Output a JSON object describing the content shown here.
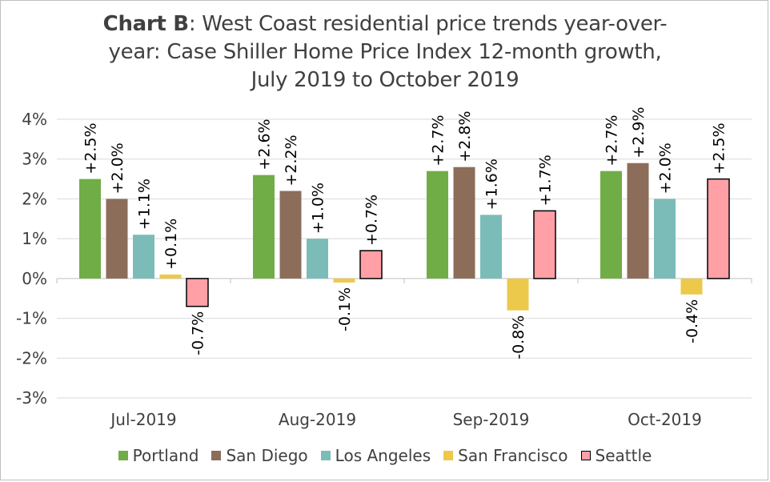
{
  "title": {
    "bold": "Chart B",
    "rest_line1": ": West Coast residential price trends year-over-",
    "line2": "year: Case Shiller Home Price Index 12-month growth,",
    "line3": "July 2019 to October 2019"
  },
  "chart_data": {
    "type": "bar",
    "title": "Chart B: West Coast residential price trends year-over-year: Case Shiller Home Price Index 12-month growth, July 2019 to October 2019",
    "categories": [
      "Jul-2019",
      "Aug-2019",
      "Sep-2019",
      "Oct-2019"
    ],
    "series": [
      {
        "name": "Portland",
        "color": "#70ad47",
        "values": [
          2.5,
          2.6,
          2.7,
          2.7
        ],
        "labels": [
          "+2.5%",
          "+2.6%",
          "+2.7%",
          "+2.7%"
        ]
      },
      {
        "name": "San Diego",
        "color": "#8c6d5a",
        "values": [
          2.0,
          2.2,
          2.8,
          2.9
        ],
        "labels": [
          "+2.0%",
          "+2.2%",
          "+2.8%",
          "+2.9%"
        ]
      },
      {
        "name": "Los Angeles",
        "color": "#7bbcb8",
        "values": [
          1.1,
          1.0,
          1.6,
          2.0
        ],
        "labels": [
          "+1.1%",
          "+1.0%",
          "+1.6%",
          "+2.0%"
        ]
      },
      {
        "name": "San Francisco",
        "color": "#ecc94b",
        "values": [
          0.1,
          -0.1,
          -0.8,
          -0.4
        ],
        "labels": [
          "+0.1%",
          "-0.1%",
          "-0.8%",
          "-0.4%"
        ]
      },
      {
        "name": "Seattle",
        "color": "#ff9fa6",
        "outline": "#000000",
        "values": [
          -0.7,
          0.7,
          1.7,
          2.5
        ],
        "labels": [
          "-0.7%",
          "+0.7%",
          "+1.7%",
          "+2.5%"
        ]
      }
    ],
    "ylim": [
      -3,
      4
    ],
    "yticks": [
      "4%",
      "3%",
      "2%",
      "1%",
      "0%",
      "-1%",
      "-2%",
      "-3%"
    ],
    "ytick_values": [
      4,
      3,
      2,
      1,
      0,
      -1,
      -2,
      -3
    ],
    "grid": true,
    "legend_position": "bottom",
    "xlabel": "",
    "ylabel": ""
  }
}
